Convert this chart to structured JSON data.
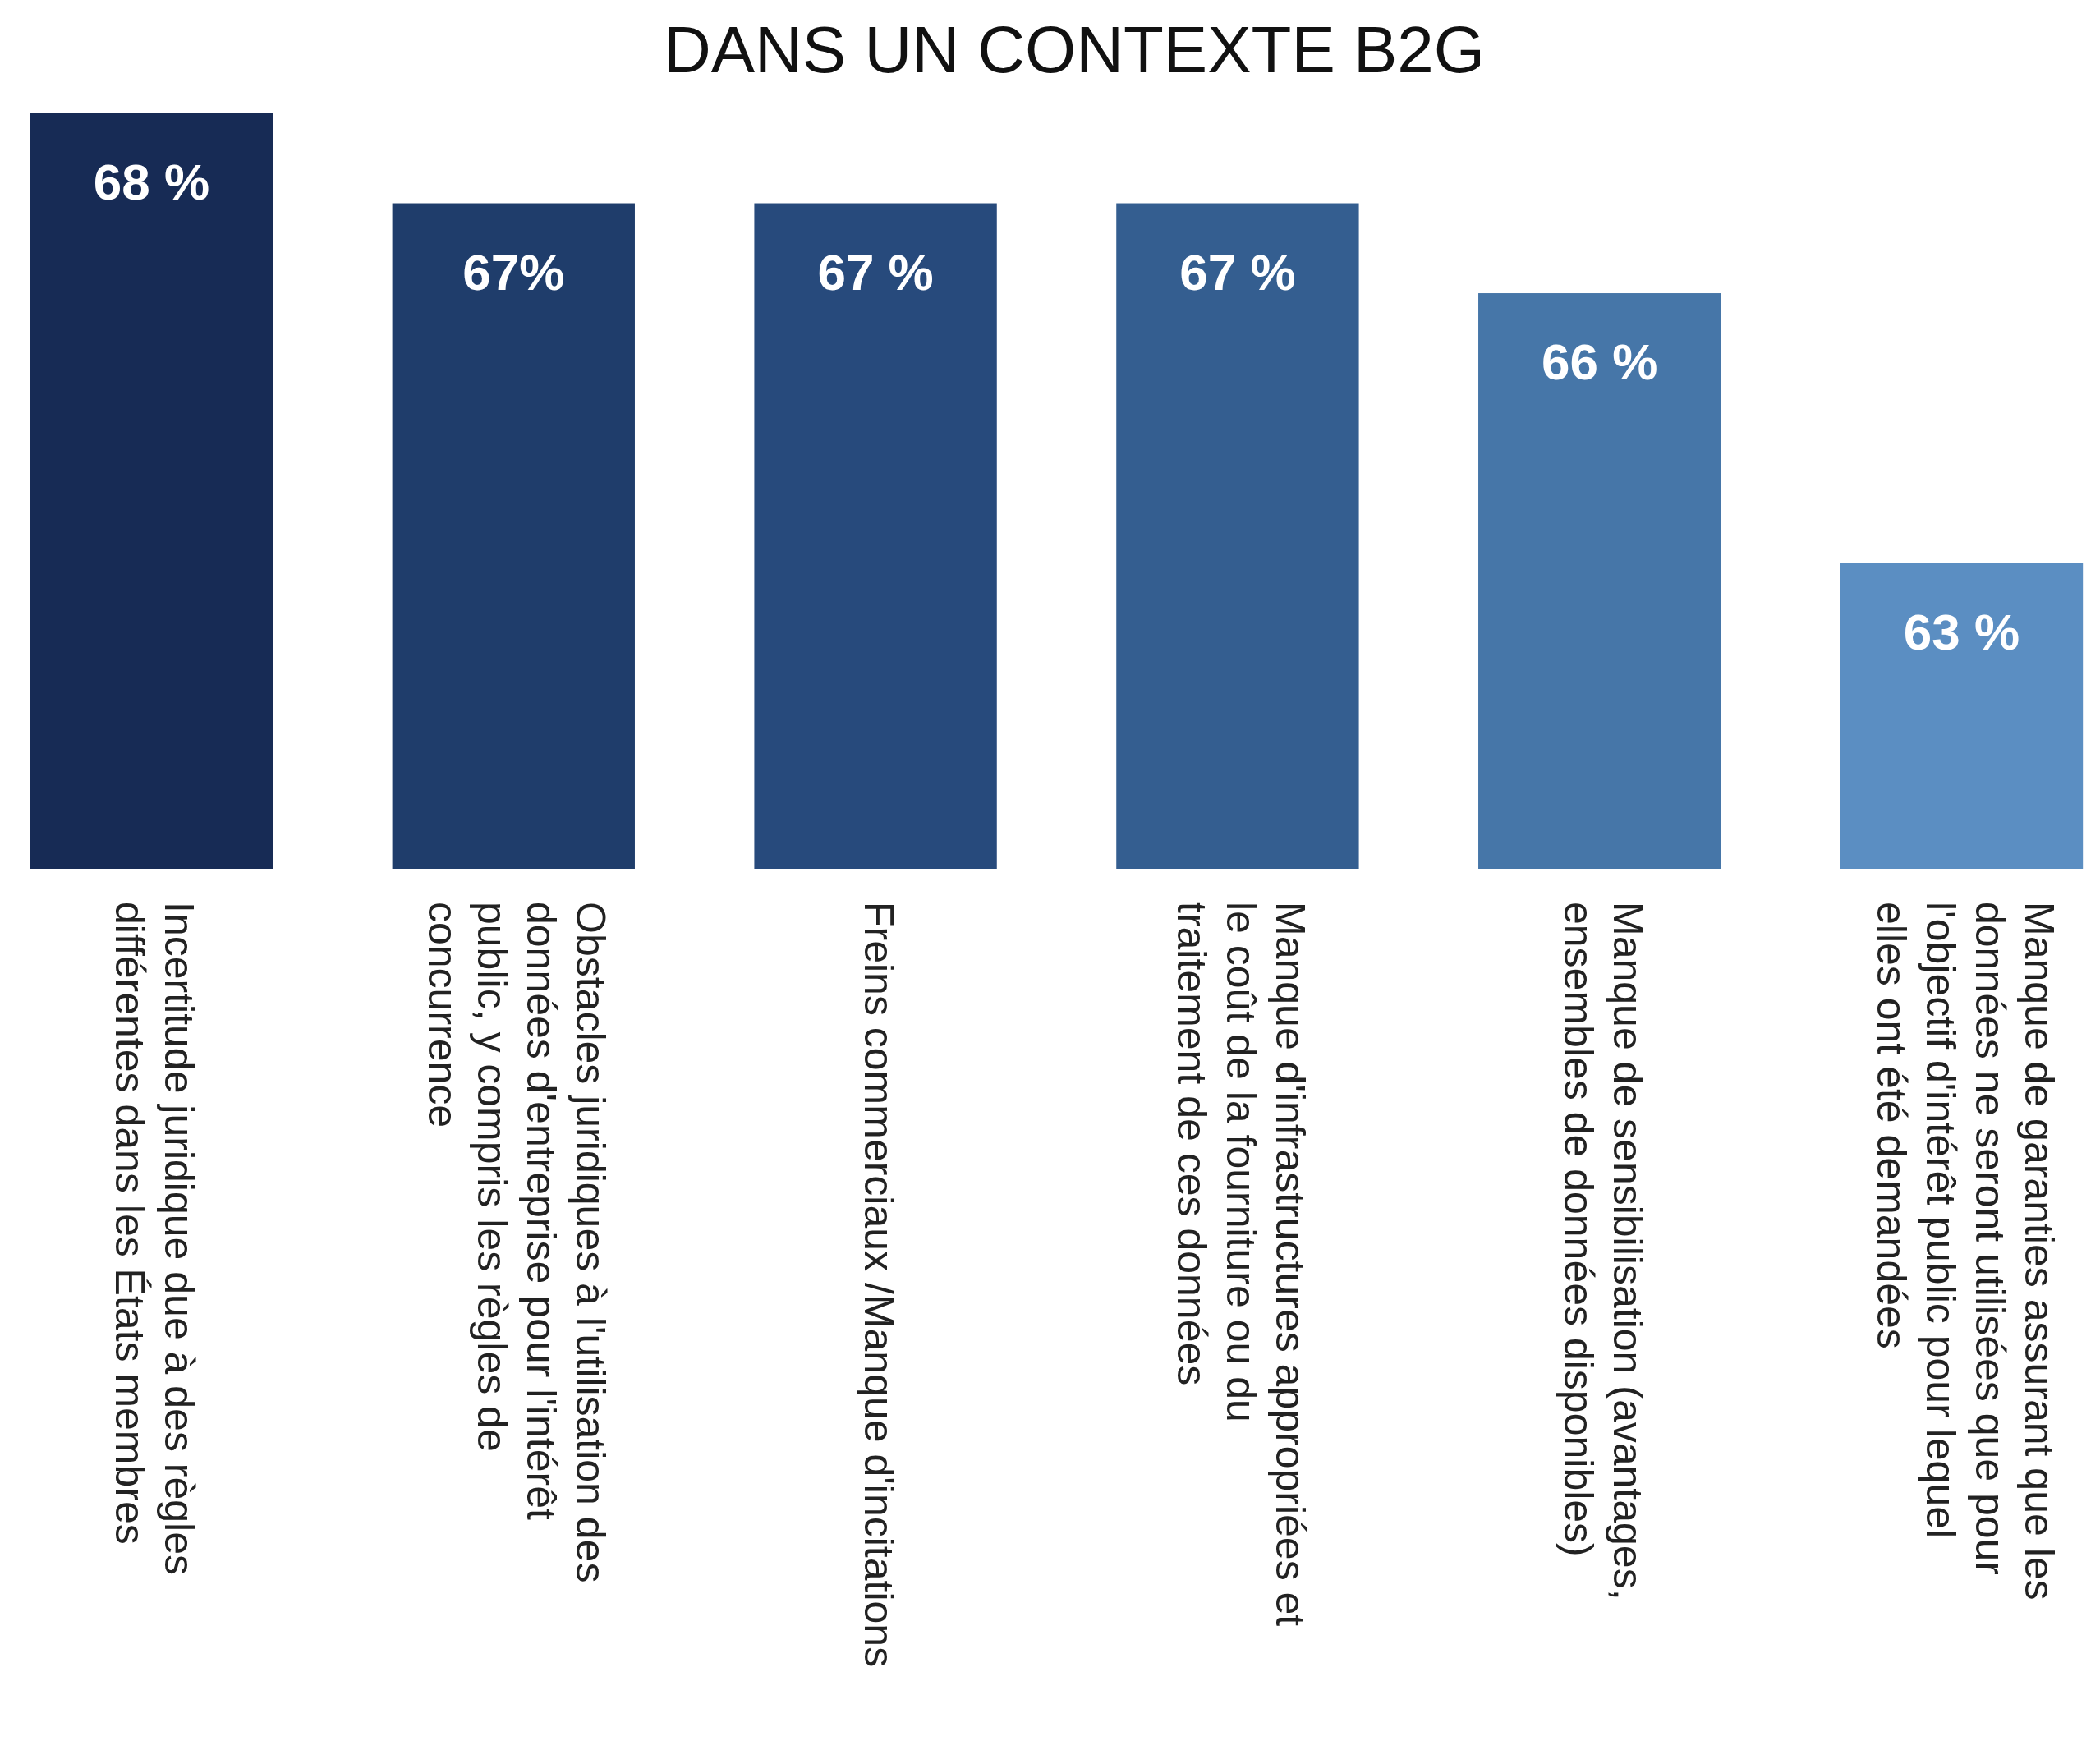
{
  "chart_data": {
    "type": "bar",
    "title": "DANS UN CONTEXTE B2G",
    "categories": [
      "Incertitude juridique due à des règles différentes dans les États membres",
      "Obstacles juridiques à l'utilisation des données d'entreprise pour l'intérêt public, y compris les règles de concurrence",
      "Freins commerciaux /Manque d'incitations",
      "Manque d'infrastructures appropriées et le coût de la fourniture ou du traitement de ces données",
      "Manque de sensibilisation (avantages, ensembles de données disponibles)",
      "Manque de garanties assurant que les données ne seront utilisées que pour l'objectif d'intérêt public pour lequel elles ont été demandées"
    ],
    "values": [
      68,
      67,
      67,
      67,
      66,
      63
    ],
    "value_labels": [
      "68 %",
      "67%",
      "67 %",
      "67 %",
      "66 %",
      "63 %"
    ],
    "colors": [
      "#172b55",
      "#1f3d6b",
      "#274a7c",
      "#345e90",
      "#4676a8",
      "#5b8ec2"
    ],
    "ylim": [
      59.6,
      68
    ],
    "tick_labels": "x"
  }
}
